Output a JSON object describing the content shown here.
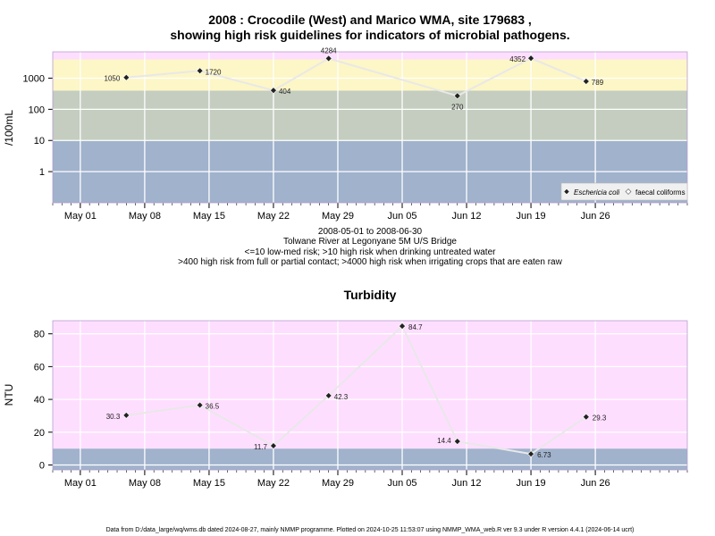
{
  "chart_data": [
    {
      "type": "line",
      "title": "2008 : Crocodile (West) and Marico WMA, site 179683 ,",
      "subtitle": "showing high risk guidelines for indicators of microbial pathogens.",
      "ylabel": "/100mL",
      "y_scale": "log",
      "ylim": [
        0.1,
        7000
      ],
      "y_ticks": [
        1,
        10,
        100,
        1000
      ],
      "y_tick_labels": [
        "1",
        "10",
        "100",
        "1000"
      ],
      "x_ticks": [
        "2008-05-01",
        "2008-05-08",
        "2008-05-15",
        "2008-05-22",
        "2008-05-29",
        "2008-06-05",
        "2008-06-12",
        "2008-06-19",
        "2008-06-26"
      ],
      "x_tick_labels": [
        "May 01",
        "May 08",
        "May 15",
        "May 22",
        "May 29",
        "Jun 05",
        "Jun 12",
        "Jun 19",
        "Jun 26"
      ],
      "xlim": [
        "2008-04-28",
        "2008-07-06"
      ],
      "bands": [
        {
          "from": 0.05,
          "to": 10,
          "color": "#a0b2cc"
        },
        {
          "from": 10,
          "to": 400,
          "color": "#c4cdbf"
        },
        {
          "from": 400,
          "to": 4000,
          "color": "#fdf6c6"
        },
        {
          "from": 4000,
          "to": 7000,
          "color": "#fedefe"
        }
      ],
      "series": [
        {
          "name": "Eschericia coli",
          "color": "#222222",
          "x": [
            "2008-05-06",
            "2008-05-14",
            "2008-05-22",
            "2008-05-28",
            "2008-06-11",
            "2008-06-19",
            "2008-06-25"
          ],
          "values": [
            1050,
            1720,
            404,
            4284,
            270,
            4352,
            789
          ],
          "labels": [
            "1050",
            "1720",
            "404",
            "4284",
            "270",
            "4352",
            "789"
          ]
        },
        {
          "name": "faecal coliforms",
          "color": "#ffffff",
          "x": [],
          "values": []
        }
      ],
      "legend_position": "bottom-right",
      "caption_lines": [
        "2008-05-01 to 2008-06-30",
        "Tolwane River at Legonyane 5M U/S Bridge",
        "<=10 low-med risk; >10 high risk when drinking untreated water",
        ">400 high risk from full or partial contact; >4000 high risk when irrigating crops that are eaten raw"
      ]
    },
    {
      "type": "line",
      "title": "Turbidity",
      "ylabel": "NTU",
      "ylim": [
        -3,
        88
      ],
      "y_ticks": [
        0,
        20,
        40,
        60,
        80
      ],
      "y_tick_labels": [
        "0",
        "20",
        "40",
        "60",
        "80"
      ],
      "x_ticks": [
        "2008-05-01",
        "2008-05-08",
        "2008-05-15",
        "2008-05-22",
        "2008-05-29",
        "2008-06-05",
        "2008-06-12",
        "2008-06-19",
        "2008-06-26"
      ],
      "x_tick_labels": [
        "May 01",
        "May 08",
        "May 15",
        "May 22",
        "May 29",
        "Jun 05",
        "Jun 12",
        "Jun 19",
        "Jun 26"
      ],
      "xlim": [
        "2008-04-28",
        "2008-07-06"
      ],
      "bands": [
        {
          "from": -3,
          "to": 10,
          "color": "#a0b2cc"
        },
        {
          "from": 10,
          "to": 88,
          "color": "#fedefe"
        }
      ],
      "series": [
        {
          "name": "",
          "color": "#222222",
          "x": [
            "2008-05-06",
            "2008-05-14",
            "2008-05-22",
            "2008-05-28",
            "2008-06-05",
            "2008-06-11",
            "2008-06-19",
            "2008-06-25"
          ],
          "values": [
            30.3,
            36.5,
            11.7,
            42.3,
            84.7,
            14.4,
            6.73,
            29.3
          ],
          "labels": [
            "30.3",
            "36.5",
            "11.7",
            "42.3",
            "84.7",
            "14.4",
            "6.73",
            "29.3"
          ]
        }
      ]
    }
  ],
  "footer": "Data from D:/data_large/wq/wms.db dated 2024-08-27, mainly NMMP programme. Plotted on 2024-10-25 11:53:07 using NMMP_WMA_web.R ver 9.3 under R version 4.4.1 (2024-06-14 ucrt)"
}
